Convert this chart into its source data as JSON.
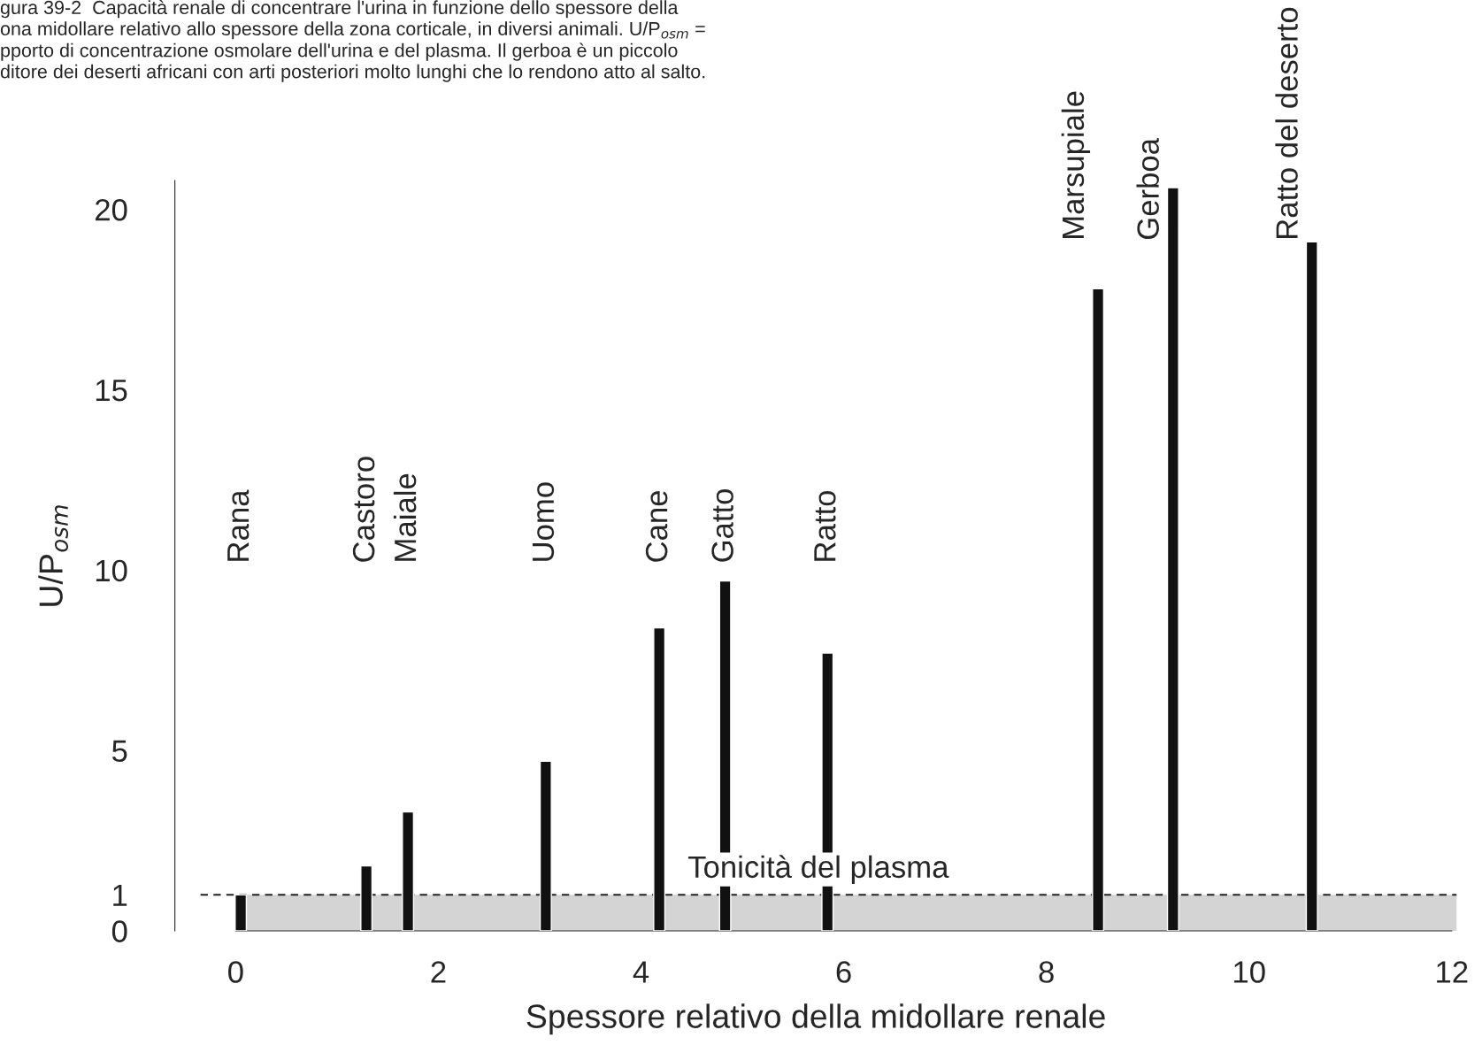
{
  "chart_data": {
    "type": "bar",
    "xlabel": "Spessore relativo della midollare renale",
    "ylabel": "U/P$_{osm}$",
    "x": [
      0.05,
      1.29,
      1.7,
      3.06,
      4.18,
      4.83,
      5.84,
      8.51,
      9.25,
      10.62
    ],
    "series": [
      {
        "color": "#111111",
        "values": [
          1.0,
          1.8,
          3.3,
          4.7,
          8.4,
          9.7,
          7.7,
          17.8,
          20.6,
          19.1
        ]
      }
    ],
    "xlim": [
      -0.6,
      12.05
    ],
    "ylim": [
      0,
      20.8
    ],
    "xticks": [
      0,
      2,
      4,
      6,
      8,
      10,
      12
    ],
    "yticks": [
      0,
      1,
      5,
      10,
      15,
      20
    ],
    "bands": [
      {
        "axis": "y",
        "from": 0,
        "to": 1,
        "color": "#d4d4d4"
      }
    ],
    "ref_lines": [
      {
        "axis": "y",
        "value": 1,
        "label": "Tonicità del plasma",
        "line_style": "dashed",
        "color": "#222222"
      }
    ],
    "annotations": [
      "Rana",
      "Castoro",
      "Maiale",
      "Uomo",
      "Cane",
      "Gatto",
      "Ratto",
      "Marsupiale",
      "Gerboa",
      "Ratto del deserto",
      "gura 39-2  Capacità renale di concentrare l'urina in funzione dello spessore della\nona midollare relativo allo spessore della zona corticale, in diversi animali. U/P$_{osm}$ =\npporto di concentrazione osmolare dell'urina e del plasma. Il gerboa è un piccolo\nditore dei deserti africani con arti posteriori molto lunghi che lo rendono atto al salto."
    ]
  }
}
